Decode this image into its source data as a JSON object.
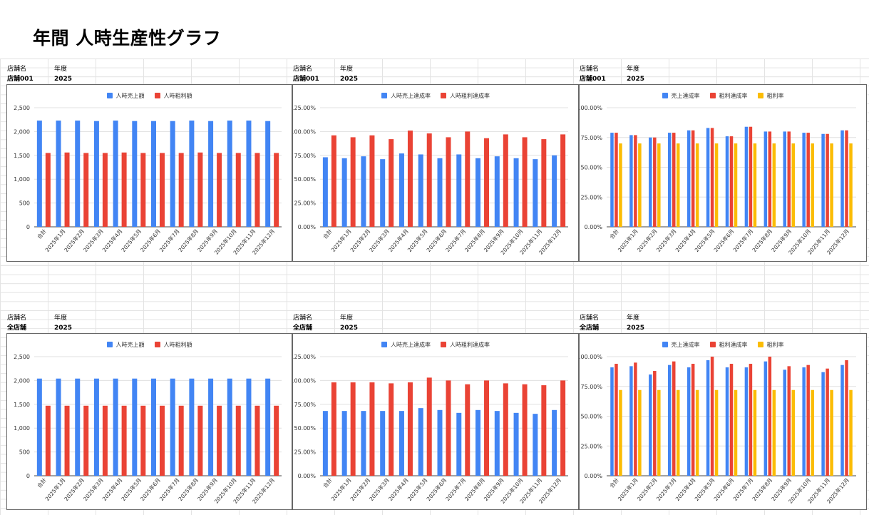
{
  "page_title": "年間 人時生産性グラフ",
  "colors": {
    "blue": "#4285f4",
    "red": "#ea4335",
    "yellow": "#fbbc04"
  },
  "sections": [
    {
      "store_label": "店舗名",
      "year_label": "年度",
      "store_value": "店舗001",
      "year_value": "2025"
    },
    {
      "store_label": "店舗名",
      "year_label": "年度",
      "store_value": "店舗001",
      "year_value": "2025"
    },
    {
      "store_label": "店舗名",
      "year_label": "年度",
      "store_value": "店舗001",
      "year_value": "2025"
    },
    {
      "store_label": "店舗名",
      "year_label": "年度",
      "store_value": "全店舗",
      "year_value": "2025"
    },
    {
      "store_label": "店舗名",
      "year_label": "年度",
      "store_value": "全店舗",
      "year_value": "2025"
    },
    {
      "store_label": "店舗名",
      "year_label": "年度",
      "store_value": "全店舗",
      "year_value": "2025"
    }
  ],
  "chart_data": [
    {
      "type": "bar",
      "categories": [
        "合計",
        "2025年1月",
        "2025年2月",
        "2025年3月",
        "2025年4月",
        "2025年5月",
        "2025年6月",
        "2025年7月",
        "2025年8月",
        "2025年9月",
        "2025年10月",
        "2025年11月",
        "2025年12月"
      ],
      "ylim": [
        0,
        2500
      ],
      "yticks": [
        "0",
        "500",
        "1,000",
        "1,500",
        "2,000",
        "2,500"
      ],
      "grid": true,
      "legend": "top-center",
      "series": [
        {
          "name": "人時売上額",
          "color": "#4285f4",
          "values": [
            2230,
            2230,
            2230,
            2220,
            2230,
            2220,
            2220,
            2220,
            2230,
            2220,
            2230,
            2230,
            2220
          ]
        },
        {
          "name": "人時粗利額",
          "color": "#ea4335",
          "values": [
            1550,
            1560,
            1550,
            1550,
            1560,
            1550,
            1550,
            1550,
            1560,
            1550,
            1550,
            1550,
            1550
          ]
        }
      ]
    },
    {
      "type": "bar",
      "categories": [
        "合計",
        "2025年1月",
        "2025年2月",
        "2025年3月",
        "2025年4月",
        "2025年5月",
        "2025年6月",
        "2025年7月",
        "2025年8月",
        "2025年9月",
        "2025年10月",
        "2025年11月",
        "2025年12月"
      ],
      "ylim": [
        0,
        125
      ],
      "yticks": [
        "0.00%",
        "25.00%",
        "50.00%",
        "75.00%",
        "100.00%",
        "125.00%"
      ],
      "grid": true,
      "legend": "top-center",
      "series": [
        {
          "name": "人時売上達成率",
          "color": "#4285f4",
          "values": [
            73,
            72,
            74,
            71,
            77,
            76,
            72,
            76,
            72,
            74,
            72,
            71,
            75
          ]
        },
        {
          "name": "人時粗利達成率",
          "color": "#ea4335",
          "values": [
            96,
            94,
            96,
            92,
            101,
            98,
            94,
            100,
            93,
            97,
            94,
            92,
            97
          ]
        }
      ]
    },
    {
      "type": "bar",
      "categories": [
        "合計",
        "2025年1月",
        "2025年2月",
        "2025年3月",
        "2025年4月",
        "2025年5月",
        "2025年6月",
        "2025年7月",
        "2025年8月",
        "2025年9月",
        "2025年10月",
        "2025年11月",
        "2025年12月"
      ],
      "ylim": [
        0,
        100
      ],
      "yticks": [
        "0.00%",
        "25.00%",
        "50.00%",
        "75.00%",
        "100.00%"
      ],
      "grid": true,
      "legend": "top-center",
      "series": [
        {
          "name": "売上達成率",
          "color": "#4285f4",
          "values": [
            79,
            77,
            75,
            79,
            81,
            83,
            76,
            84,
            80,
            80,
            79,
            78,
            81
          ]
        },
        {
          "name": "粗利達成率",
          "color": "#ea4335",
          "values": [
            79,
            77,
            75,
            79,
            81,
            83,
            76,
            84,
            80,
            80,
            79,
            78,
            81
          ]
        },
        {
          "name": "粗利率",
          "color": "#fbbc04",
          "values": [
            70,
            70,
            70,
            70,
            70,
            70,
            70,
            70,
            70,
            70,
            70,
            70,
            70
          ]
        }
      ]
    },
    {
      "type": "bar",
      "categories": [
        "合計",
        "2025年1月",
        "2025年2月",
        "2025年3月",
        "2025年4月",
        "2025年5月",
        "2025年6月",
        "2025年7月",
        "2025年8月",
        "2025年9月",
        "2025年10月",
        "2025年11月",
        "2025年12月"
      ],
      "ylim": [
        0,
        2500
      ],
      "yticks": [
        "0",
        "500",
        "1,000",
        "1,500",
        "2,000",
        "2,500"
      ],
      "grid": true,
      "legend": "top-center",
      "series": [
        {
          "name": "人時売上額",
          "color": "#4285f4",
          "values": [
            2040,
            2040,
            2040,
            2040,
            2040,
            2040,
            2040,
            2040,
            2040,
            2040,
            2040,
            2040,
            2040
          ]
        },
        {
          "name": "人時粗利額",
          "color": "#ea4335",
          "values": [
            1470,
            1470,
            1470,
            1470,
            1470,
            1470,
            1470,
            1470,
            1470,
            1470,
            1470,
            1470,
            1470
          ]
        }
      ]
    },
    {
      "type": "bar",
      "categories": [
        "合計",
        "2025年1月",
        "2025年2月",
        "2025年3月",
        "2025年4月",
        "2025年5月",
        "2025年6月",
        "2025年7月",
        "2025年8月",
        "2025年9月",
        "2025年10月",
        "2025年11月",
        "2025年12月"
      ],
      "ylim": [
        0,
        125
      ],
      "yticks": [
        "0.00%",
        "25.00%",
        "50.00%",
        "75.00%",
        "100.00%",
        "125.00%"
      ],
      "grid": true,
      "legend": "top-center",
      "series": [
        {
          "name": "人時売上達成率",
          "color": "#4285f4",
          "values": [
            68,
            68,
            68,
            68,
            68,
            71,
            69,
            66,
            69,
            68,
            66,
            65,
            69
          ]
        },
        {
          "name": "人時粗利達成率",
          "color": "#ea4335",
          "values": [
            98,
            98,
            98,
            97,
            98,
            103,
            100,
            96,
            100,
            97,
            96,
            95,
            100
          ]
        }
      ]
    },
    {
      "type": "bar",
      "categories": [
        "合計",
        "2025年1月",
        "2025年2月",
        "2025年3月",
        "2025年4月",
        "2025年5月",
        "2025年6月",
        "2025年7月",
        "2025年8月",
        "2025年9月",
        "2025年10月",
        "2025年11月",
        "2025年12月"
      ],
      "ylim": [
        0,
        100
      ],
      "yticks": [
        "0.00%",
        "25.00%",
        "50.00%",
        "75.00%",
        "100.00%"
      ],
      "grid": true,
      "legend": "top-center",
      "series": [
        {
          "name": "売上達成率",
          "color": "#4285f4",
          "values": [
            91,
            92,
            85,
            93,
            91,
            97,
            91,
            91,
            96,
            89,
            91,
            87,
            93
          ]
        },
        {
          "name": "粗利達成率",
          "color": "#ea4335",
          "values": [
            94,
            95,
            88,
            96,
            94,
            100,
            94,
            94,
            100,
            92,
            93,
            90,
            97
          ]
        },
        {
          "name": "粗利率",
          "color": "#fbbc04",
          "values": [
            72,
            72,
            72,
            72,
            72,
            72,
            72,
            72,
            72,
            72,
            72,
            72,
            72
          ]
        }
      ]
    }
  ]
}
